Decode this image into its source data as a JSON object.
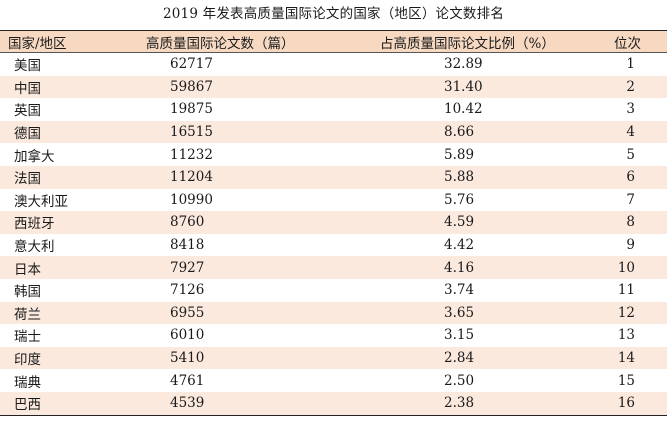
{
  "title": "2019 年发表高质量国际论文的国家（地区）论文数排名",
  "table": {
    "headers": {
      "region": "国家/地区",
      "papers": "高质量国际论文数（篇）",
      "share": "占高质量国际论文比例（%）",
      "rank": "位次"
    },
    "rows": [
      {
        "region": "美国",
        "papers": "62717",
        "share": "32.89",
        "rank": "1"
      },
      {
        "region": "中国",
        "papers": "59867",
        "share": "31.40",
        "rank": "2"
      },
      {
        "region": "英国",
        "papers": "19875",
        "share": "10.42",
        "rank": "3"
      },
      {
        "region": "德国",
        "papers": "16515",
        "share": "8.66",
        "rank": "4"
      },
      {
        "region": "加拿大",
        "papers": "11232",
        "share": "5.89",
        "rank": "5"
      },
      {
        "region": "法国",
        "papers": "11204",
        "share": "5.88",
        "rank": "6"
      },
      {
        "region": "澳大利亚",
        "papers": "10990",
        "share": "5.76",
        "rank": "7"
      },
      {
        "region": "西班牙",
        "papers": "8760",
        "share": "4.59",
        "rank": "8"
      },
      {
        "region": "意大利",
        "papers": "8418",
        "share": "4.42",
        "rank": "9"
      },
      {
        "region": "日本",
        "papers": "7927",
        "share": "4.16",
        "rank": "10"
      },
      {
        "region": "韩国",
        "papers": "7126",
        "share": "3.74",
        "rank": "11"
      },
      {
        "region": "荷兰",
        "papers": "6955",
        "share": "3.65",
        "rank": "12"
      },
      {
        "region": "瑞士",
        "papers": "6010",
        "share": "3.15",
        "rank": "13"
      },
      {
        "region": "印度",
        "papers": "5410",
        "share": "2.84",
        "rank": "14"
      },
      {
        "region": "瑞典",
        "papers": "4761",
        "share": "2.50",
        "rank": "15"
      },
      {
        "region": "巴西",
        "papers": "4539",
        "share": "2.38",
        "rank": "16"
      }
    ]
  },
  "colors": {
    "header_fill": "#f7d9c2",
    "stripe_fill": "#fbe9de",
    "rule": "#222222"
  }
}
